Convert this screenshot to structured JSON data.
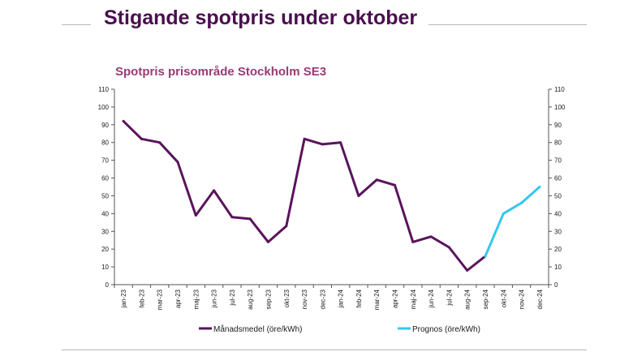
{
  "slide": {
    "title": "Stigande spotpris under oktober"
  },
  "chart_data": {
    "type": "line",
    "title": "Spotpris prisområde Stockholm SE3",
    "xlabel": "",
    "ylabel": "",
    "ylim": [
      0,
      110
    ],
    "yticks": [
      0,
      10,
      20,
      30,
      40,
      50,
      60,
      70,
      80,
      90,
      100,
      110
    ],
    "secondary_y": true,
    "grid": false,
    "legend_position": "bottom",
    "categories": [
      "jan-23",
      "feb-23",
      "mar-23",
      "apr-23",
      "maj-23",
      "jun-23",
      "jul-23",
      "aug-23",
      "sep-23",
      "okt-23",
      "nov-23",
      "dec-23",
      "jan-24",
      "feb-24",
      "mar-24",
      "apr-24",
      "maj-24",
      "jun-24",
      "jul-24",
      "aug-24",
      "sep-24",
      "okt-24",
      "nov-24",
      "dec-24"
    ],
    "series": [
      {
        "name": "Månadsmedel (öre/kWh)",
        "color": "#5a145c",
        "values": [
          92,
          82,
          80,
          69,
          39,
          53,
          38,
          37,
          24,
          33,
          82,
          79,
          80,
          50,
          59,
          56,
          24,
          27,
          21,
          8,
          16,
          null,
          null,
          null
        ]
      },
      {
        "name": "Prognos (öre/kWh)",
        "color": "#35c7f0",
        "values": [
          null,
          null,
          null,
          null,
          null,
          null,
          null,
          null,
          null,
          null,
          null,
          null,
          null,
          null,
          null,
          null,
          null,
          null,
          null,
          null,
          16,
          40,
          46,
          55
        ]
      }
    ]
  }
}
